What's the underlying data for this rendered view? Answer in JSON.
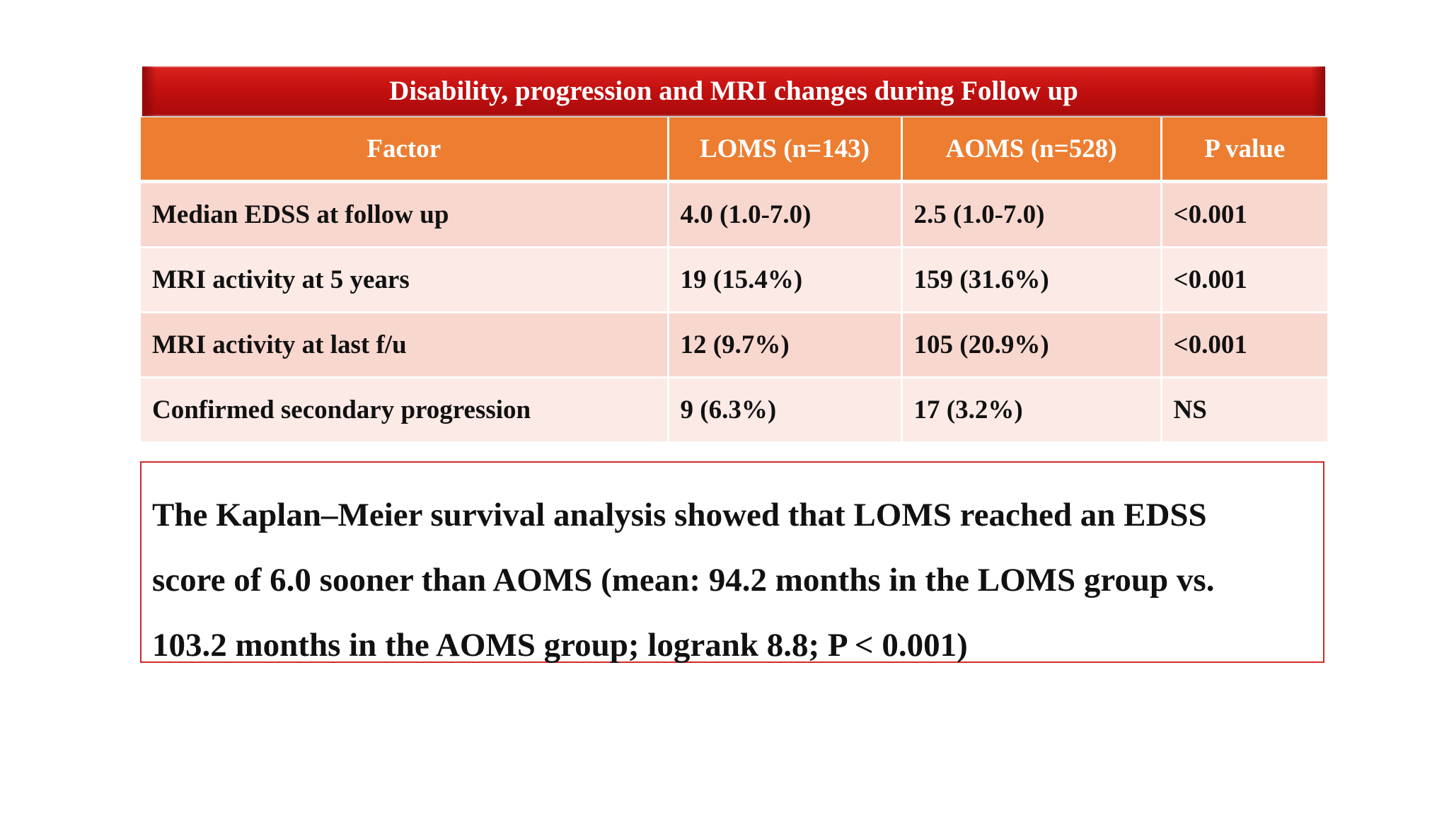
{
  "title": "Disability, progression and MRI changes during Follow up",
  "colors": {
    "title_bar": "#c41010",
    "header_row": "#ed7d31",
    "row_odd": "#f8d7cf",
    "row_even": "#fbeae6",
    "note_border": "#d02a2a"
  },
  "table": {
    "headers": [
      "Factor",
      "LOMS (n=143)",
      "AOMS (n=528)",
      "P value"
    ],
    "rows": [
      [
        "Median EDSS at follow up",
        "4.0 (1.0-7.0)",
        "2.5 (1.0-7.0)",
        "<0.001"
      ],
      [
        "MRI activity at 5 years",
        "19 (15.4%)",
        "159 (31.6%)",
        "<0.001"
      ],
      [
        "MRI activity at last f/u",
        "12 (9.7%)",
        "105 (20.9%)",
        "<0.001"
      ],
      [
        "Confirmed secondary progression",
        "9 (6.3%)",
        "17 (3.2%)",
        "NS"
      ]
    ]
  },
  "note": {
    "lines": [
      "The Kaplan–Meier survival analysis showed that LOMS reached an EDSS",
      "score of 6.0 sooner than AOMS (mean: 94.2 months in the LOMS group vs.",
      "103.2 months in the AOMS group; logrank 8.8; P < 0.001)"
    ]
  }
}
